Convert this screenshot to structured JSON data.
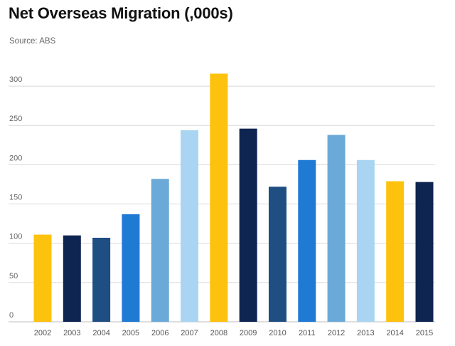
{
  "chart_data": {
    "type": "bar",
    "title": "Net Overseas Migration (,000s)",
    "subtitle": "Source: ABS",
    "xlabel": "",
    "ylabel": "",
    "ylim": [
      0,
      330
    ],
    "yticks": [
      0,
      50,
      100,
      150,
      200,
      250,
      300
    ],
    "grid": true,
    "categories": [
      "2002",
      "2003",
      "2004",
      "2005",
      "2006",
      "2007",
      "2008",
      "2009",
      "2010",
      "2011",
      "2012",
      "2013",
      "2014",
      "2015"
    ],
    "values": [
      111,
      110,
      107,
      137,
      182,
      244,
      316,
      246,
      172,
      206,
      238,
      206,
      179,
      178
    ],
    "colors": [
      "#FDC20E",
      "#0E2451",
      "#1F4E82",
      "#1F7AD4",
      "#6BAAD8",
      "#A9D5F2",
      "#FDC20E",
      "#0E2451",
      "#1F4E82",
      "#1F7AD4",
      "#6BAAD8",
      "#A9D5F2",
      "#FDC20E",
      "#0E2451"
    ]
  }
}
